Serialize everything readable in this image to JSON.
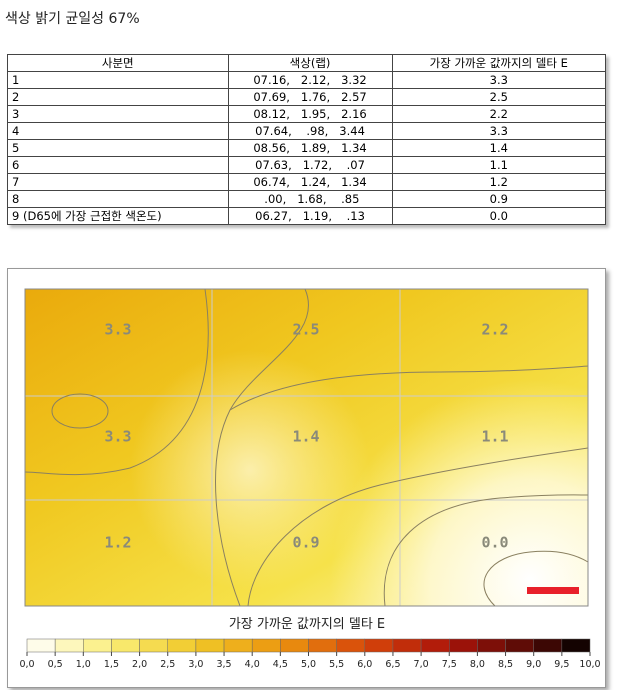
{
  "title": "색상 밝기 균일성 67%",
  "table": {
    "headers": [
      "사분면",
      "색상(랩)",
      "가장 가까운 값까지의 델타 E"
    ],
    "rows": [
      [
        "1",
        "07.16,   2.12,   3.32",
        "3.3"
      ],
      [
        "2",
        "07.69,   1.76,   2.57",
        "2.5"
      ],
      [
        "3",
        "08.12,   1.95,   2.16",
        "2.2"
      ],
      [
        "4",
        "07.64,    .98,   3.44",
        "3.3"
      ],
      [
        "5",
        "08.56,   1.89,   1.34",
        "1.4"
      ],
      [
        "6",
        "07.63,   1.72,    .07",
        "1.1"
      ],
      [
        "7",
        "06.74,   1.24,   1.34",
        "1.2"
      ],
      [
        "8",
        " .00,   1.68,    .85",
        "0.9"
      ],
      [
        "9 (D65에 가장 근접한 색온도)",
        "06.27,   1.19,    .13",
        "0.0"
      ]
    ]
  },
  "heatmap": {
    "cells": [
      "3.3",
      "2.5",
      "2.2",
      "3.3",
      "1.4",
      "1.1",
      "1.2",
      "0.9",
      "0.0"
    ]
  },
  "legend": {
    "title": "가장 가까운 값까지의 델타 E",
    "ticks": [
      "0,0",
      "0,5",
      "1,0",
      "1,5",
      "2,0",
      "2,5",
      "3,0",
      "3,5",
      "4,0",
      "4,5",
      "5,0",
      "5,5",
      "6,0",
      "6,5",
      "7,0",
      "7,5",
      "8,0",
      "8,5",
      "9,0",
      "9,5",
      "10,0"
    ]
  }
}
